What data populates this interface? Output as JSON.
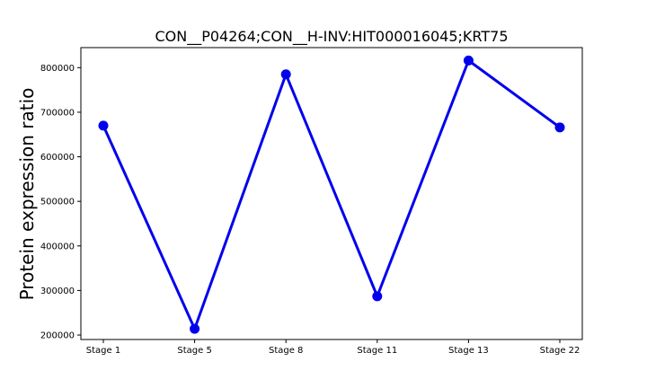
{
  "chart_data": {
    "type": "line",
    "title": "CON__P04264;CON__H-INV:HIT000016045;KRT75",
    "xlabel": "",
    "ylabel": "Protein expression ratio",
    "categories": [
      "Stage 1",
      "Stage 5",
      "Stage 8",
      "Stage 11",
      "Stage 13",
      "Stage 22"
    ],
    "series": [
      {
        "values": [
          670000,
          214000,
          785000,
          287000,
          816000,
          666000
        ],
        "color": "#0000ee"
      }
    ],
    "ylim": [
      190000,
      845000
    ],
    "yticks": [
      200000,
      300000,
      400000,
      500000,
      600000,
      700000,
      800000
    ],
    "ytick_labels": [
      "200000",
      "300000",
      "400000",
      "500000",
      "600000",
      "700000",
      "800000"
    ],
    "grid": false,
    "legend": "none"
  }
}
